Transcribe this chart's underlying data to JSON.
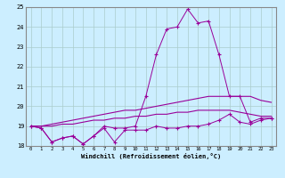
{
  "x": [
    0,
    1,
    2,
    3,
    4,
    5,
    6,
    7,
    8,
    9,
    10,
    11,
    12,
    13,
    14,
    15,
    16,
    17,
    18,
    19,
    20,
    21,
    22,
    23
  ],
  "line_squiggly": [
    19.0,
    18.9,
    18.2,
    18.4,
    18.5,
    18.1,
    18.5,
    18.9,
    18.2,
    18.8,
    18.8,
    18.8,
    19.0,
    18.9,
    18.9,
    19.0,
    19.0,
    19.1,
    19.3,
    19.6,
    19.2,
    19.1,
    19.3,
    19.4
  ],
  "line_peak": [
    19.0,
    18.9,
    18.2,
    18.4,
    18.5,
    18.1,
    18.5,
    19.0,
    18.9,
    18.9,
    19.0,
    20.5,
    22.6,
    23.9,
    24.0,
    24.9,
    24.2,
    24.3,
    22.6,
    20.5,
    20.5,
    19.2,
    19.4,
    19.4
  ],
  "line_smooth1": [
    19.0,
    19.0,
    19.1,
    19.2,
    19.3,
    19.4,
    19.5,
    19.6,
    19.7,
    19.8,
    19.8,
    19.9,
    20.0,
    20.1,
    20.2,
    20.3,
    20.4,
    20.5,
    20.5,
    20.5,
    20.5,
    20.5,
    20.3,
    20.2
  ],
  "line_smooth2": [
    19.0,
    19.0,
    19.0,
    19.1,
    19.1,
    19.2,
    19.3,
    19.3,
    19.4,
    19.4,
    19.5,
    19.5,
    19.6,
    19.6,
    19.7,
    19.7,
    19.8,
    19.8,
    19.8,
    19.8,
    19.7,
    19.6,
    19.5,
    19.5
  ],
  "line_color": "#990099",
  "bg_color": "#cceeff",
  "grid_color": "#aacccc",
  "xlabel": "Windchill (Refroidissement éolien,°C)",
  "ylim": [
    18,
    25
  ],
  "xlim": [
    -0.5,
    23.5
  ],
  "yticks": [
    18,
    19,
    20,
    21,
    22,
    23,
    24,
    25
  ],
  "xticks": [
    0,
    1,
    2,
    3,
    4,
    5,
    6,
    7,
    8,
    9,
    10,
    11,
    12,
    13,
    14,
    15,
    16,
    17,
    18,
    19,
    20,
    21,
    22,
    23
  ]
}
